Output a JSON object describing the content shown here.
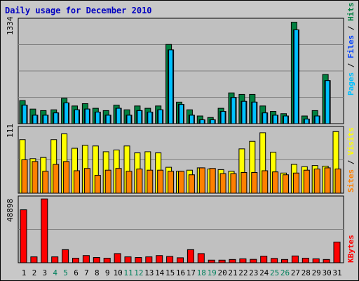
{
  "title": "Daily usage for December 2010",
  "colors": {
    "background": "#c8c8c8",
    "plot": "#c0c0c0",
    "pages": "#00c0ff",
    "files": "#0040ff",
    "hits": "#008040",
    "visits": "#ffff00",
    "sites": "#ff8000",
    "kbytes": "#ff0000",
    "weekend_label": "#00805c",
    "weekday_label": "#000000"
  },
  "labels": {
    "top_max": "1334",
    "middle_max": "111",
    "bottom_max": "48898",
    "right_pages": "Pages",
    "right_slash1": " / ",
    "right_files": "Files",
    "right_slash2": " / ",
    "right_hits": "Hits",
    "right_sites": "Sites",
    "right_slash3": " / ",
    "right_visits": "Visits",
    "right_kbytes": "KBytes"
  },
  "chart_data": [
    {
      "type": "bar",
      "title": "Daily usage for December 2010",
      "ylabel": "Pages / Files / Hits",
      "ylim": [
        0,
        1334
      ],
      "grid": true,
      "categories": [
        "1",
        "2",
        "3",
        "4",
        "5",
        "6",
        "7",
        "8",
        "9",
        "10",
        "11",
        "12",
        "13",
        "14",
        "15",
        "16",
        "17",
        "18",
        "19",
        "20",
        "21",
        "22",
        "23",
        "24",
        "25",
        "26",
        "27",
        "28",
        "29",
        "30",
        "31"
      ],
      "series": [
        {
          "name": "Hits",
          "values": [
            300,
            190,
            170,
            180,
            330,
            230,
            260,
            200,
            170,
            240,
            180,
            230,
            200,
            230,
            1030,
            280,
            180,
            100,
            80,
            200,
            400,
            380,
            380,
            230,
            160,
            130,
            1320,
            100,
            170,
            640,
            0
          ]
        },
        {
          "name": "Files",
          "values": [
            240,
            110,
            110,
            140,
            270,
            180,
            190,
            150,
            110,
            200,
            110,
            170,
            150,
            180,
            960,
            250,
            110,
            50,
            50,
            160,
            340,
            290,
            280,
            140,
            110,
            100,
            1220,
            60,
            100,
            560,
            0
          ]
        },
        {
          "name": "Pages",
          "values": [
            240,
            110,
            110,
            140,
            270,
            180,
            190,
            150,
            110,
            200,
            110,
            170,
            150,
            180,
            960,
            250,
            110,
            50,
            50,
            160,
            340,
            290,
            280,
            140,
            110,
            100,
            1220,
            60,
            100,
            560,
            0
          ]
        }
      ]
    },
    {
      "type": "bar",
      "ylabel": "Sites / Visits",
      "ylim": [
        0,
        111
      ],
      "grid": true,
      "categories": [
        "1",
        "2",
        "3",
        "4",
        "5",
        "6",
        "7",
        "8",
        "9",
        "10",
        "11",
        "12",
        "13",
        "14",
        "15",
        "16",
        "17",
        "18",
        "19",
        "20",
        "21",
        "22",
        "23",
        "24",
        "25",
        "26",
        "27",
        "28",
        "29",
        "30",
        "31"
      ],
      "series": [
        {
          "name": "Visits",
          "values": [
            93,
            60,
            62,
            93,
            103,
            78,
            83,
            82,
            72,
            75,
            82,
            70,
            72,
            70,
            45,
            38,
            40,
            44,
            42,
            41,
            38,
            77,
            90,
            105,
            71,
            35,
            50,
            46,
            48,
            47,
            107
          ]
        },
        {
          "name": "Sites",
          "values": [
            58,
            55,
            38,
            50,
            55,
            39,
            43,
            31,
            40,
            43,
            38,
            42,
            40,
            40,
            38,
            38,
            32,
            44,
            43,
            34,
            34,
            36,
            36,
            39,
            37,
            32,
            35,
            40,
            42,
            44,
            42
          ]
        }
      ]
    },
    {
      "type": "bar",
      "ylabel": "KBytes",
      "ylim": [
        0,
        48898
      ],
      "grid": true,
      "categories": [
        "1",
        "2",
        "3",
        "4",
        "5",
        "6",
        "7",
        "8",
        "9",
        "10",
        "11",
        "12",
        "13",
        "14",
        "15",
        "16",
        "17",
        "18",
        "19",
        "20",
        "21",
        "22",
        "23",
        "24",
        "25",
        "26",
        "27",
        "28",
        "29",
        "30",
        "31"
      ],
      "series": [
        {
          "name": "KBytes",
          "values": [
            40500,
            4500,
            48800,
            4500,
            10000,
            3500,
            5500,
            4000,
            3500,
            7000,
            4500,
            4000,
            4500,
            5500,
            4800,
            3800,
            10000,
            7000,
            2000,
            2000,
            2500,
            3000,
            2600,
            5000,
            3300,
            2500,
            5200,
            3500,
            3000,
            2500,
            15800
          ]
        }
      ]
    }
  ],
  "weekend_days": [
    4,
    5,
    11,
    12,
    18,
    19,
    25,
    26
  ]
}
